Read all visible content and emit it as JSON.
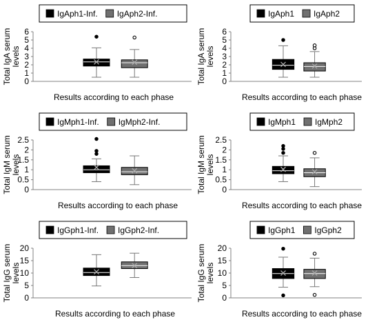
{
  "colors": {
    "series1": "#000000",
    "series2": "#707070",
    "mean_marker": "#aaaaaa",
    "axis": "#808080"
  },
  "chart_data": [
    {
      "type": "boxplot",
      "legend_placement": "top",
      "ylabel": "Total IgA serum levels",
      "xlabel": "Results according to each phase",
      "ylim": [
        0,
        6
      ],
      "yticks": [
        "0",
        "1",
        "2",
        "3",
        "4",
        "5",
        "6"
      ],
      "series": [
        {
          "name": "IgAph1-Inf.",
          "min": 0.5,
          "q1": 1.85,
          "median": 2.35,
          "q3": 2.7,
          "max": 4.05,
          "mean": 2.35,
          "outliers": [
            5.4
          ],
          "outlier_style": "filled"
        },
        {
          "name": "IgAph2-Inf.",
          "min": 0.5,
          "q1": 1.65,
          "median": 2.25,
          "q3": 2.6,
          "max": 3.85,
          "mean": 2.3,
          "outliers": [
            5.3
          ],
          "outlier_style": "open"
        }
      ]
    },
    {
      "type": "boxplot",
      "legend_placement": "top",
      "ylabel": "Total IgA serum levels",
      "xlabel": "Results according to each phase",
      "ylim": [
        0,
        6
      ],
      "yticks": [
        "0",
        "1",
        "2",
        "3",
        "4",
        "5",
        "6"
      ],
      "series": [
        {
          "name": "IgAph1",
          "min": 0.5,
          "q1": 1.45,
          "median": 1.95,
          "q3": 2.65,
          "max": 4.3,
          "mean": 2.05,
          "outliers": [
            5.0
          ],
          "outlier_style": "filled"
        },
        {
          "name": "IgAph2",
          "min": 0.5,
          "q1": 1.25,
          "median": 1.8,
          "q3": 2.25,
          "max": 3.6,
          "mean": 1.85,
          "outliers": [
            4.0,
            4.35
          ],
          "outlier_style": "open"
        }
      ]
    },
    {
      "type": "boxplot",
      "legend_placement": "top",
      "ylabel": "Total IgM serum levels",
      "xlabel": "Results according to each phase",
      "ylim": [
        0,
        2.5
      ],
      "yticks": [
        "0",
        "0.5",
        "1",
        "1.5",
        "2",
        "2.5"
      ],
      "series": [
        {
          "name": "IgMph1-Inf.",
          "min": 0.4,
          "q1": 0.85,
          "median": 1.0,
          "q3": 1.2,
          "max": 1.55,
          "mean": 1.12,
          "outliers": [
            1.8,
            1.95,
            2.55
          ],
          "outlier_style": "filled"
        },
        {
          "name": "IgMph2-Inf.",
          "min": 0.25,
          "q1": 0.75,
          "median": 0.9,
          "q3": 1.12,
          "max": 1.7,
          "mean": 0.95,
          "outliers": [],
          "outlier_style": "open"
        }
      ]
    },
    {
      "type": "boxplot",
      "legend_placement": "top",
      "ylabel": "Total IgM serum levels",
      "xlabel": "Results according to each phase",
      "ylim": [
        0,
        2.5
      ],
      "yticks": [
        "0",
        "0.5",
        "1",
        "1.5",
        "2",
        "2.5"
      ],
      "series": [
        {
          "name": "IgMph1",
          "min": 0.4,
          "q1": 0.8,
          "median": 0.95,
          "q3": 1.17,
          "max": 1.7,
          "mean": 1.02,
          "outliers": [
            1.85,
            2.05,
            2.2
          ],
          "outlier_style": "filled"
        },
        {
          "name": "IgMph2",
          "min": 0.15,
          "q1": 0.65,
          "median": 0.85,
          "q3": 1.05,
          "max": 1.6,
          "mean": 0.9,
          "outliers": [
            1.85
          ],
          "outlier_style": "open"
        }
      ]
    },
    {
      "type": "boxplot",
      "legend_placement": "top",
      "ylabel": "Total IgG serum levels",
      "xlabel": "Results according to each phase",
      "ylim": [
        0,
        20
      ],
      "yticks": [
        "0",
        "5",
        "10",
        "15",
        "20"
      ],
      "series": [
        {
          "name": "IgGph1-Inf.",
          "min": 4.8,
          "q1": 9.0,
          "median": 10.2,
          "q3": 12.0,
          "max": 17.4,
          "mean": 10.5,
          "outliers": [],
          "outlier_style": "filled"
        },
        {
          "name": "IgGph2-Inf.",
          "min": 8.2,
          "q1": 11.8,
          "median": 13.0,
          "q3": 14.5,
          "max": 18.0,
          "mean": 13.0,
          "outliers": [],
          "outlier_style": "open"
        }
      ]
    },
    {
      "type": "boxplot",
      "legend_placement": "top",
      "ylabel": "Total IgG serum levels",
      "xlabel": "Results according to each phase",
      "ylim": [
        0,
        20
      ],
      "yticks": [
        "0",
        "5",
        "10",
        "15",
        "20"
      ],
      "series": [
        {
          "name": "IgGph1",
          "min": 4.3,
          "q1": 7.8,
          "median": 9.8,
          "q3": 11.8,
          "max": 16.4,
          "mean": 10.0,
          "outliers": [
            19.8,
            1.0
          ],
          "outlier_style": "filled"
        },
        {
          "name": "IgGph2",
          "min": 4.5,
          "q1": 7.8,
          "median": 9.8,
          "q3": 11.5,
          "max": 16.0,
          "mean": 10.0,
          "outliers": [
            17.8,
            1.2
          ],
          "outlier_style": "open"
        }
      ]
    }
  ]
}
